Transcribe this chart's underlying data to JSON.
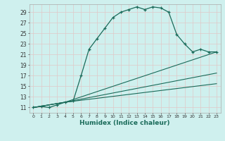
{
  "xlabel": "Humidex (Indice chaleur)",
  "bg_color": "#cff0ee",
  "line_color": "#1a6b5a",
  "grid_color": "#e0c8c8",
  "xlim": [
    -0.5,
    23.5
  ],
  "ylim": [
    10,
    30.5
  ],
  "yticks": [
    11,
    13,
    15,
    17,
    19,
    21,
    23,
    25,
    27,
    29
  ],
  "xticks": [
    0,
    1,
    2,
    3,
    4,
    5,
    6,
    7,
    8,
    9,
    10,
    11,
    12,
    13,
    14,
    15,
    16,
    17,
    18,
    19,
    20,
    21,
    22,
    23
  ],
  "main_x": [
    0,
    1,
    2,
    3,
    4,
    5,
    6,
    7,
    8,
    9,
    10,
    11,
    12,
    13,
    14,
    15,
    16,
    17,
    18,
    19,
    20,
    21,
    22,
    23
  ],
  "main_y": [
    11,
    11.2,
    11,
    11.5,
    12,
    12.2,
    17,
    22,
    24,
    26,
    28,
    29,
    29.5,
    30,
    29.5,
    30,
    29.8,
    29,
    24.8,
    23,
    21.5,
    22,
    21.5,
    21.5
  ],
  "fan_lines": [
    {
      "x": [
        0,
        4,
        23
      ],
      "y": [
        11,
        12,
        21.5
      ]
    },
    {
      "x": [
        0,
        4,
        23
      ],
      "y": [
        11,
        12,
        17.5
      ]
    },
    {
      "x": [
        0,
        4,
        23
      ],
      "y": [
        11,
        12,
        15.5
      ]
    }
  ]
}
